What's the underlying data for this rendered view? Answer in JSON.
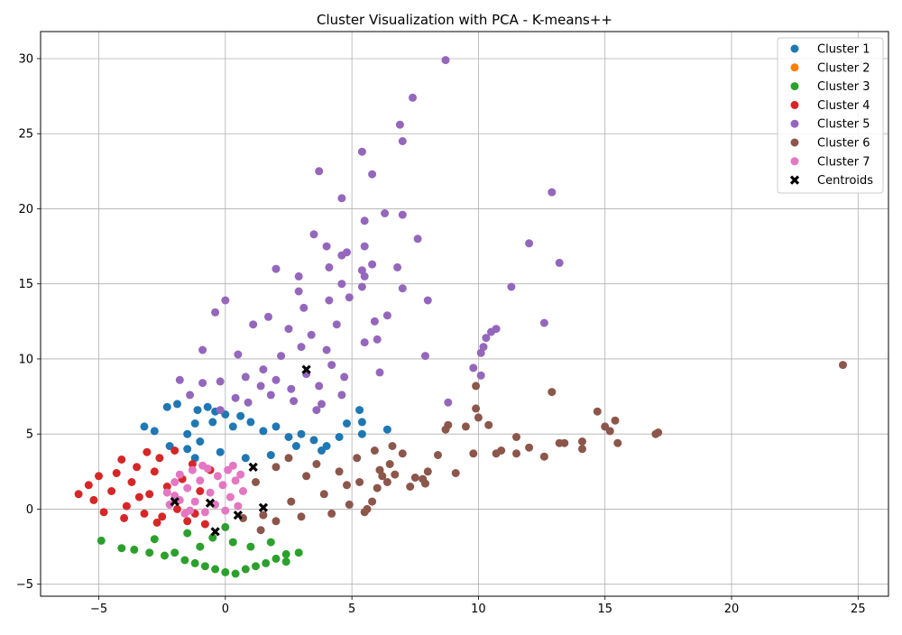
{
  "chart_data": {
    "type": "scatter",
    "title": "Cluster Visualization with PCA - K-means++",
    "xlabel": "",
    "ylabel": "",
    "xlim": [
      -7.3,
      26.2
    ],
    "ylim": [
      -5.8,
      31.8
    ],
    "xticks": [
      -5,
      0,
      5,
      10,
      15,
      20,
      25
    ],
    "yticks": [
      -5,
      0,
      5,
      10,
      15,
      20,
      25,
      30
    ],
    "grid": true,
    "legend_position": "top-right",
    "series": [
      {
        "name": "Cluster 1",
        "color": "#1f77b4",
        "points": [
          [
            -3.2,
            5.5
          ],
          [
            -2.8,
            5.2
          ],
          [
            -2.3,
            6.8
          ],
          [
            -2.2,
            4.2
          ],
          [
            -1.9,
            7.0
          ],
          [
            -1.5,
            5.0
          ],
          [
            -1.2,
            5.7
          ],
          [
            -1.1,
            6.6
          ],
          [
            -0.7,
            6.8
          ],
          [
            -0.4,
            6.5
          ],
          [
            -1.5,
            4.0
          ],
          [
            -1.0,
            4.5
          ],
          [
            -0.5,
            5.8
          ],
          [
            0.0,
            6.3
          ],
          [
            0.3,
            5.5
          ],
          [
            0.6,
            6.2
          ],
          [
            1.0,
            5.8
          ],
          [
            1.5,
            5.2
          ],
          [
            2.0,
            5.5
          ],
          [
            2.5,
            4.8
          ],
          [
            3.0,
            5.0
          ],
          [
            3.5,
            4.6
          ],
          [
            4.0,
            4.2
          ],
          [
            4.5,
            4.8
          ],
          [
            4.8,
            5.7
          ],
          [
            5.3,
            6.6
          ],
          [
            5.4,
            5.8
          ],
          [
            5.4,
            5.0
          ],
          [
            6.4,
            5.3
          ],
          [
            2.8,
            4.2
          ],
          [
            1.8,
            3.6
          ],
          [
            0.8,
            3.4
          ],
          [
            -0.2,
            3.8
          ],
          [
            -1.2,
            3.4
          ],
          [
            3.8,
            3.9
          ]
        ]
      },
      {
        "name": "Cluster 2",
        "color": "#ff7f0e",
        "points": []
      },
      {
        "name": "Cluster 3",
        "color": "#2ca02c",
        "points": [
          [
            -4.9,
            -2.1
          ],
          [
            -4.1,
            -2.6
          ],
          [
            -3.6,
            -2.7
          ],
          [
            -3.0,
            -2.9
          ],
          [
            -2.4,
            -3.1
          ],
          [
            -2.0,
            -2.9
          ],
          [
            -1.6,
            -3.4
          ],
          [
            -1.2,
            -3.6
          ],
          [
            -0.8,
            -3.8
          ],
          [
            -0.4,
            -4.0
          ],
          [
            0.0,
            -4.2
          ],
          [
            0.4,
            -4.3
          ],
          [
            0.8,
            -4.0
          ],
          [
            1.2,
            -3.8
          ],
          [
            1.6,
            -3.6
          ],
          [
            2.0,
            -3.3
          ],
          [
            2.4,
            -3.0
          ],
          [
            2.9,
            -2.9
          ],
          [
            2.4,
            -3.5
          ],
          [
            -2.8,
            -2.0
          ],
          [
            -1.5,
            -1.6
          ],
          [
            -0.5,
            -1.9
          ],
          [
            0.3,
            -2.2
          ],
          [
            1.0,
            -2.5
          ],
          [
            1.8,
            -2.2
          ],
          [
            0.0,
            -1.2
          ],
          [
            -1.0,
            -2.5
          ]
        ]
      },
      {
        "name": "Cluster 4",
        "color": "#d62728",
        "points": [
          [
            -5.8,
            1.0
          ],
          [
            -5.4,
            1.6
          ],
          [
            -5.2,
            0.6
          ],
          [
            -5.0,
            2.2
          ],
          [
            -4.8,
            -0.2
          ],
          [
            -4.5,
            1.2
          ],
          [
            -4.3,
            2.4
          ],
          [
            -4.1,
            3.3
          ],
          [
            -3.9,
            0.2
          ],
          [
            -3.7,
            1.8
          ],
          [
            -3.5,
            2.8
          ],
          [
            -3.2,
            -0.3
          ],
          [
            -3.1,
            3.8
          ],
          [
            -3.0,
            1.0
          ],
          [
            -2.8,
            2.5
          ],
          [
            -2.6,
            3.4
          ],
          [
            -2.5,
            -0.5
          ],
          [
            -2.3,
            1.5
          ],
          [
            -2.0,
            3.9
          ],
          [
            -1.9,
            0.0
          ],
          [
            -1.7,
            2.0
          ],
          [
            -1.5,
            -0.8
          ],
          [
            -1.3,
            3.0
          ],
          [
            -1.0,
            1.2
          ],
          [
            -0.8,
            -1.0
          ],
          [
            -0.6,
            2.6
          ],
          [
            -4.0,
            -0.6
          ],
          [
            -3.4,
            0.8
          ],
          [
            -2.7,
            -0.9
          ],
          [
            -1.2,
            -0.3
          ]
        ]
      },
      {
        "name": "Cluster 5",
        "color": "#9467bd",
        "points": [
          [
            8.7,
            29.9
          ],
          [
            7.4,
            27.4
          ],
          [
            6.9,
            25.6
          ],
          [
            7.0,
            24.5
          ],
          [
            5.4,
            23.8
          ],
          [
            3.7,
            22.5
          ],
          [
            5.8,
            22.3
          ],
          [
            12.9,
            21.1
          ],
          [
            4.6,
            20.7
          ],
          [
            6.3,
            19.7
          ],
          [
            7.0,
            19.6
          ],
          [
            5.5,
            19.2
          ],
          [
            7.6,
            18.0
          ],
          [
            3.5,
            18.3
          ],
          [
            12.0,
            17.7
          ],
          [
            5.5,
            17.5
          ],
          [
            4.0,
            17.5
          ],
          [
            4.8,
            17.1
          ],
          [
            4.6,
            16.9
          ],
          [
            13.2,
            16.4
          ],
          [
            5.8,
            16.3
          ],
          [
            2.0,
            16.0
          ],
          [
            6.8,
            16.1
          ],
          [
            4.1,
            16.1
          ],
          [
            5.4,
            15.9
          ],
          [
            5.5,
            15.5
          ],
          [
            2.9,
            15.5
          ],
          [
            4.6,
            15.0
          ],
          [
            11.3,
            14.8
          ],
          [
            5.4,
            14.8
          ],
          [
            7.0,
            14.7
          ],
          [
            2.9,
            14.5
          ],
          [
            4.9,
            14.1
          ],
          [
            8.0,
            13.9
          ],
          [
            -0.0,
            13.9
          ],
          [
            4.1,
            13.9
          ],
          [
            3.1,
            13.4
          ],
          [
            -0.4,
            13.1
          ],
          [
            6.4,
            12.9
          ],
          [
            1.7,
            12.8
          ],
          [
            12.6,
            12.4
          ],
          [
            1.1,
            12.3
          ],
          [
            5.9,
            12.5
          ],
          [
            10.7,
            12.0
          ],
          [
            10.5,
            11.8
          ],
          [
            10.3,
            11.4
          ],
          [
            6.0,
            11.3
          ],
          [
            5.5,
            11.1
          ],
          [
            10.2,
            10.8
          ],
          [
            -0.9,
            10.6
          ],
          [
            0.5,
            10.3
          ],
          [
            7.9,
            10.2
          ],
          [
            10.1,
            10.4
          ],
          [
            9.8,
            9.4
          ],
          [
            10.1,
            8.9
          ],
          [
            6.1,
            9.1
          ],
          [
            -1.8,
            8.6
          ],
          [
            -0.2,
            8.5
          ],
          [
            -0.9,
            8.4
          ],
          [
            0.4,
            7.4
          ],
          [
            -1.4,
            7.6
          ],
          [
            -0.2,
            6.6
          ],
          [
            8.8,
            7.1
          ],
          [
            1.5,
            9.3
          ],
          [
            2.0,
            8.6
          ],
          [
            2.6,
            8.0
          ],
          [
            3.2,
            9.0
          ],
          [
            3.7,
            8.2
          ],
          [
            4.2,
            9.6
          ],
          [
            4.7,
            8.8
          ],
          [
            1.8,
            7.6
          ],
          [
            2.7,
            7.2
          ],
          [
            3.8,
            7.0
          ],
          [
            4.6,
            7.6
          ],
          [
            2.2,
            10.2
          ],
          [
            3.0,
            10.8
          ],
          [
            4.0,
            10.6
          ],
          [
            1.4,
            8.2
          ],
          [
            3.4,
            11.6
          ],
          [
            2.5,
            12.0
          ],
          [
            4.4,
            12.3
          ],
          [
            0.9,
            7.1
          ],
          [
            0.8,
            8.8
          ],
          [
            3.6,
            6.6
          ]
        ]
      },
      {
        "name": "Cluster 6",
        "color": "#8c564b",
        "points": [
          [
            24.4,
            9.6
          ],
          [
            17.1,
            5.1
          ],
          [
            17.0,
            5.0
          ],
          [
            15.4,
            5.9
          ],
          [
            15.5,
            4.4
          ],
          [
            15.2,
            5.2
          ],
          [
            15.0,
            5.5
          ],
          [
            14.7,
            6.5
          ],
          [
            14.1,
            4.0
          ],
          [
            14.1,
            4.5
          ],
          [
            13.4,
            4.4
          ],
          [
            13.2,
            4.4
          ],
          [
            12.9,
            7.8
          ],
          [
            12.6,
            3.5
          ],
          [
            12.0,
            4.1
          ],
          [
            11.5,
            4.8
          ],
          [
            11.5,
            3.7
          ],
          [
            10.9,
            3.9
          ],
          [
            10.7,
            3.7
          ],
          [
            10.4,
            5.6
          ],
          [
            9.9,
            6.7
          ],
          [
            9.9,
            8.2
          ],
          [
            10.0,
            6.1
          ],
          [
            9.5,
            5.5
          ],
          [
            9.8,
            3.7
          ],
          [
            9.1,
            2.4
          ],
          [
            8.8,
            5.6
          ],
          [
            8.7,
            5.3
          ],
          [
            8.4,
            3.6
          ],
          [
            8.0,
            2.5
          ],
          [
            7.8,
            2.0
          ],
          [
            7.9,
            1.7
          ],
          [
            7.5,
            2.1
          ],
          [
            7.3,
            1.5
          ],
          [
            7.0,
            3.7
          ],
          [
            6.6,
            4.2
          ],
          [
            6.7,
            2.3
          ],
          [
            6.5,
            3.0
          ],
          [
            6.4,
            1.8
          ],
          [
            6.2,
            2.2
          ],
          [
            6.0,
            1.4
          ],
          [
            5.8,
            0.5
          ],
          [
            5.6,
            0.0
          ],
          [
            5.5,
            -0.2
          ],
          [
            4.9,
            0.3
          ],
          [
            5.2,
            3.4
          ],
          [
            4.5,
            2.5
          ],
          [
            3.9,
            1.0
          ],
          [
            3.2,
            2.2
          ],
          [
            2.6,
            0.5
          ],
          [
            2.0,
            -0.8
          ],
          [
            1.4,
            -1.4
          ],
          [
            1.2,
            1.8
          ],
          [
            2.0,
            2.8
          ],
          [
            3.0,
            -0.5
          ],
          [
            4.2,
            -0.3
          ],
          [
            2.5,
            3.4
          ],
          [
            3.6,
            3.0
          ],
          [
            1.5,
            -0.4
          ],
          [
            4.8,
            1.6
          ],
          [
            0.7,
            -0.6
          ],
          [
            5.9,
            3.9
          ],
          [
            6.1,
            2.6
          ],
          [
            5.3,
            1.8
          ]
        ]
      },
      {
        "name": "Cluster 7",
        "color": "#e377c2",
        "points": [
          [
            -2.3,
            1.1
          ],
          [
            -2.2,
            0.3
          ],
          [
            -2.0,
            1.8
          ],
          [
            -2.0,
            0.9
          ],
          [
            -1.8,
            2.3
          ],
          [
            -1.6,
            -0.3
          ],
          [
            -1.5,
            1.4
          ],
          [
            -1.3,
            2.6
          ],
          [
            -1.2,
            0.5
          ],
          [
            -1.0,
            1.9
          ],
          [
            -0.8,
            -0.2
          ],
          [
            -0.7,
            2.7
          ],
          [
            -0.6,
            1.1
          ],
          [
            -0.4,
            0.3
          ],
          [
            -0.3,
            2.2
          ],
          [
            -0.1,
            1.6
          ],
          [
            0.0,
            -0.1
          ],
          [
            0.1,
            2.6
          ],
          [
            0.2,
            0.8
          ],
          [
            0.4,
            1.9
          ],
          [
            0.5,
            0.2
          ],
          [
            0.6,
            2.3
          ],
          [
            0.7,
            1.2
          ],
          [
            -1.4,
            -0.1
          ],
          [
            -1.8,
            0.6
          ],
          [
            -0.9,
            2.9
          ],
          [
            0.3,
            2.9
          ]
        ]
      }
    ],
    "centroids": {
      "name": "Centroids",
      "color": "#000000",
      "points": [
        [
          -2.0,
          0.5
        ],
        [
          -0.6,
          0.4
        ],
        [
          -0.4,
          -1.5
        ],
        [
          0.5,
          -0.4
        ],
        [
          1.1,
          2.8
        ],
        [
          1.5,
          0.1
        ],
        [
          3.2,
          9.3
        ]
      ]
    }
  }
}
